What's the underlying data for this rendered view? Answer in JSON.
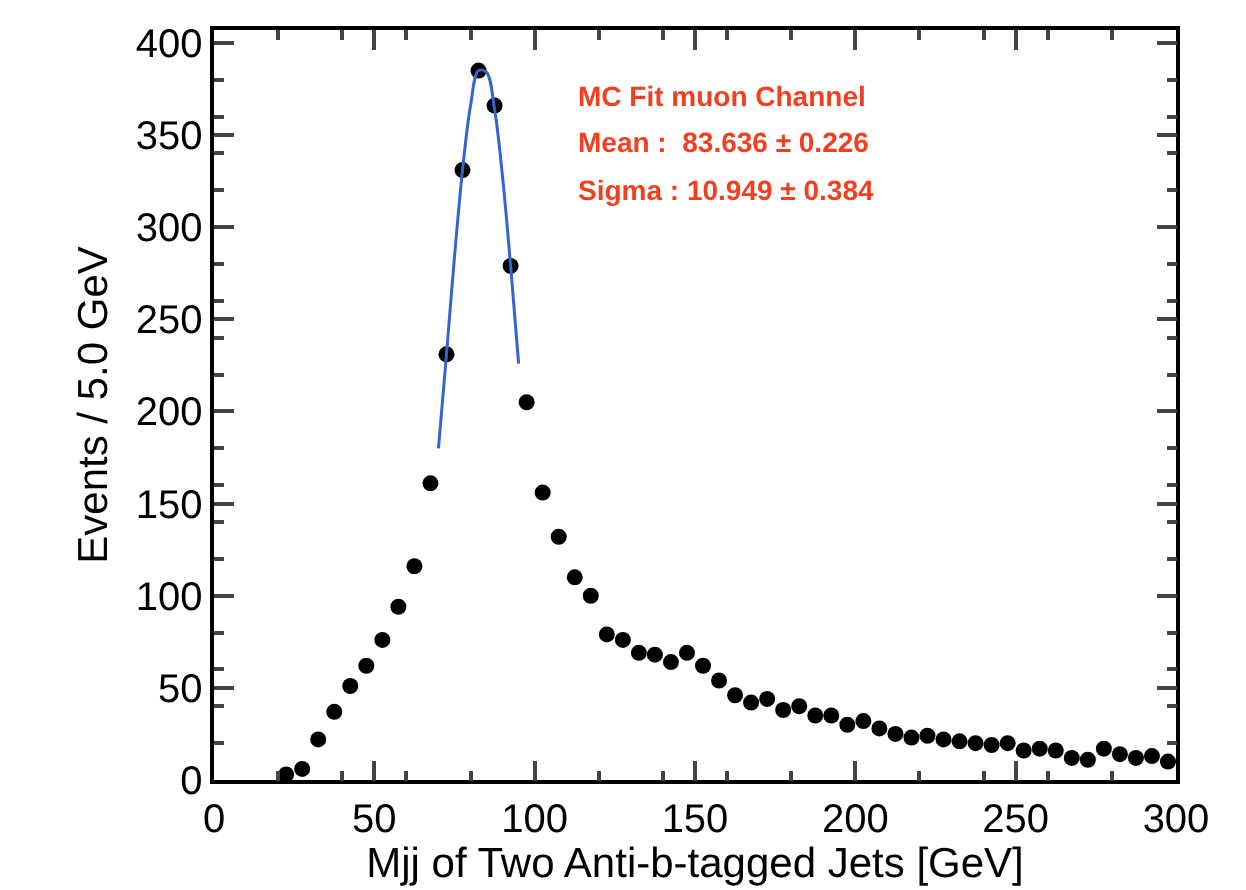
{
  "chart_data": {
    "type": "scatter",
    "xlabel": "Mjj of Two Anti-b-tagged Jets [GeV]",
    "ylabel": "Events / 5.0 GeV",
    "xlim": [
      0,
      300
    ],
    "xticks": [
      0,
      50,
      100,
      150,
      200,
      250,
      300
    ],
    "ylim": [
      0,
      407
    ],
    "yticks": [
      0,
      50,
      100,
      150,
      200,
      250,
      300,
      350,
      400
    ],
    "grid": false,
    "marker": "circle",
    "annotations": [
      "MC Fit muon Channel",
      "Mean :  83.636 ± 0.226",
      "Sigma : 10.949 ± 0.384"
    ],
    "series": [
      {
        "color": "#000000",
        "x": [
          22.5,
          27.5,
          32.5,
          37.5,
          42.5,
          47.5,
          52.5,
          57.5,
          62.5,
          67.5,
          72.5,
          77.5,
          82.5,
          87.5,
          92.5,
          97.5,
          102.5,
          107.5,
          112.5,
          117.5,
          122.5,
          127.5,
          132.5,
          137.5,
          142.5,
          147.5,
          152.5,
          157.5,
          162.5,
          167.5,
          172.5,
          177.5,
          182.5,
          187.5,
          192.5,
          197.5,
          202.5,
          207.5,
          212.5,
          217.5,
          222.5,
          227.5,
          232.5,
          237.5,
          242.5,
          247.5,
          252.5,
          257.5,
          262.5,
          267.5,
          272.5,
          277.5,
          282.5,
          287.5,
          292.5,
          297.5
        ],
        "values": [
          3,
          6,
          22,
          37,
          51,
          62,
          76,
          94,
          116,
          161,
          231,
          331,
          385,
          366,
          279,
          205,
          156,
          132,
          110,
          100,
          79,
          76,
          69,
          68,
          64,
          69,
          62,
          54,
          46,
          42,
          44,
          38,
          40,
          35,
          35,
          30,
          32,
          28,
          25,
          23,
          24,
          22,
          21,
          20,
          19,
          20,
          16,
          17,
          16,
          12,
          11,
          17,
          14,
          12,
          13,
          10
        ]
      },
      {
        "type": "line",
        "marker": "none",
        "color": "#3366cc",
        "x": [
          70,
          72.5,
          75,
          77.5,
          80,
          82.5,
          85,
          87.5,
          90,
          92.5,
          95
        ],
        "values": [
          180,
          231,
          284,
          331,
          366,
          385,
          384,
          364,
          327,
          279,
          226
        ]
      }
    ]
  }
}
